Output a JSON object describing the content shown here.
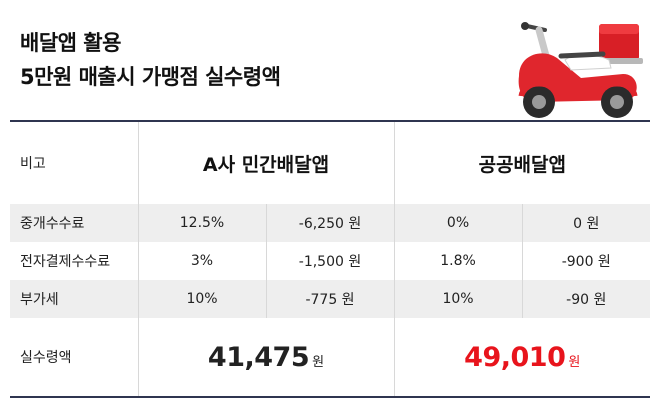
{
  "title": {
    "line1": "배달앱 활용",
    "line2": "5만원 매출시 가맹점 실수령액"
  },
  "table": {
    "header": {
      "label": "비고",
      "col_a": "A사 민간배달앱",
      "col_b": "공공배달앱"
    },
    "rows": [
      {
        "label": "중개수수료",
        "a_rate": "12.5%",
        "a_amount": "-6,250 원",
        "b_rate": "0%",
        "b_amount": "0 원"
      },
      {
        "label": "전자결제수수료",
        "a_rate": "3%",
        "a_amount": "-1,500 원",
        "b_rate": "1.8%",
        "b_amount": "-900 원"
      },
      {
        "label": "부가세",
        "a_rate": "10%",
        "a_amount": "-775 원",
        "b_rate": "10%",
        "b_amount": "-90 원"
      }
    ],
    "total": {
      "label": "실수령액",
      "a_value": "41,475",
      "a_unit": "원",
      "b_value": "49,010",
      "b_unit": "원"
    }
  },
  "colors": {
    "accent_red": "#e8141c",
    "border": "#2f3550",
    "row_shade": "#eeeeee"
  },
  "icons": [
    "delivery-scooter-icon"
  ]
}
